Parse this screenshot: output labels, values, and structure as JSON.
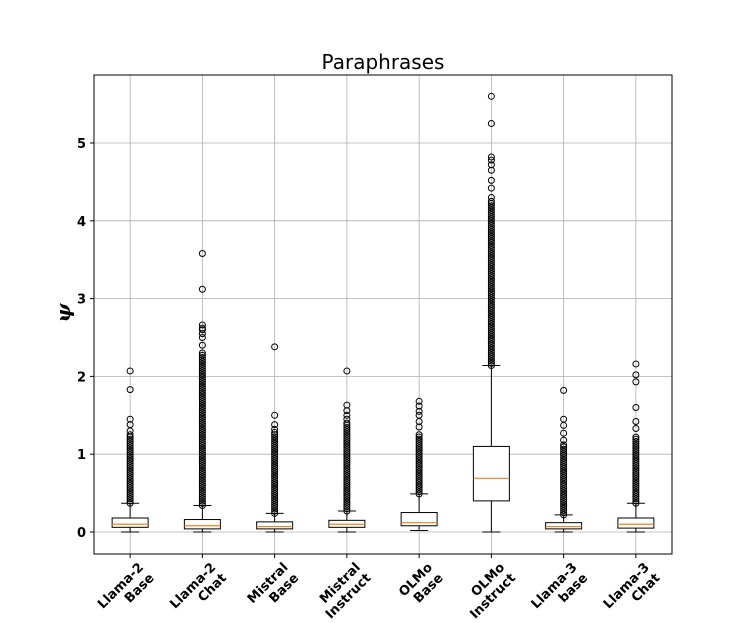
{
  "chart_data": {
    "type": "boxplot",
    "title": "Paraphrases",
    "xlabel": "",
    "ylabel": "ψ",
    "ylim": [
      -0.28,
      5.85
    ],
    "yticks": [
      0,
      1,
      2,
      3,
      4,
      5
    ],
    "grid": true,
    "colors": {
      "median": "#ff7f0e",
      "box": "#000000",
      "grid": "#b0b0b0"
    },
    "categories": [
      [
        "Llama-2",
        "Base"
      ],
      [
        "Llama-2",
        "Chat"
      ],
      [
        "Mistral",
        "Base"
      ],
      [
        "Mistral",
        "Instruct"
      ],
      [
        "OLMo",
        "Base"
      ],
      [
        "OLMo",
        "Instruct"
      ],
      [
        "Llama-3",
        "base"
      ],
      [
        "Llama-3",
        "Chat"
      ]
    ],
    "boxes": [
      {
        "whislo": 0.0,
        "q1": 0.06,
        "med": 0.1,
        "q3": 0.18,
        "whishi": 0.37,
        "fliers_dense": [
          0.37,
          1.25
        ],
        "fliers": [
          1.3,
          1.38,
          1.45,
          1.83,
          2.07
        ]
      },
      {
        "whislo": 0.0,
        "q1": 0.04,
        "med": 0.08,
        "q3": 0.16,
        "whishi": 0.34,
        "fliers_dense": [
          0.34,
          2.3
        ],
        "fliers": [
          2.4,
          2.5,
          2.55,
          2.6,
          2.62,
          2.66,
          3.12,
          3.58
        ]
      },
      {
        "whislo": 0.0,
        "q1": 0.04,
        "med": 0.07,
        "q3": 0.13,
        "whishi": 0.24,
        "fliers_dense": [
          0.24,
          1.28
        ],
        "fliers": [
          1.32,
          1.38,
          1.5,
          2.38
        ]
      },
      {
        "whislo": 0.0,
        "q1": 0.06,
        "med": 0.1,
        "q3": 0.15,
        "whishi": 0.27,
        "fliers_dense": [
          0.27,
          1.4
        ],
        "fliers": [
          1.45,
          1.5,
          1.56,
          1.63,
          2.07
        ]
      },
      {
        "whislo": 0.02,
        "q1": 0.08,
        "med": 0.12,
        "q3": 0.25,
        "whishi": 0.49,
        "fliers_dense": [
          0.49,
          1.25
        ],
        "fliers": [
          1.35,
          1.42,
          1.5,
          1.55,
          1.62,
          1.68
        ]
      },
      {
        "whislo": 0.0,
        "q1": 0.4,
        "med": 0.69,
        "q3": 1.1,
        "whishi": 2.14,
        "fliers_dense": [
          2.14,
          4.25
        ],
        "fliers": [
          4.3,
          4.42,
          4.52,
          4.65,
          4.72,
          4.78,
          4.82,
          5.25,
          5.6
        ]
      },
      {
        "whislo": 0.0,
        "q1": 0.04,
        "med": 0.07,
        "q3": 0.12,
        "whishi": 0.22,
        "fliers_dense": [
          0.22,
          1.12
        ],
        "fliers": [
          1.18,
          1.27,
          1.37,
          1.45,
          1.82
        ]
      },
      {
        "whislo": 0.0,
        "q1": 0.05,
        "med": 0.1,
        "q3": 0.18,
        "whishi": 0.37,
        "fliers_dense": [
          0.37,
          1.22
        ],
        "fliers": [
          1.33,
          1.42,
          1.6,
          1.93,
          2.02,
          2.16
        ]
      }
    ]
  }
}
